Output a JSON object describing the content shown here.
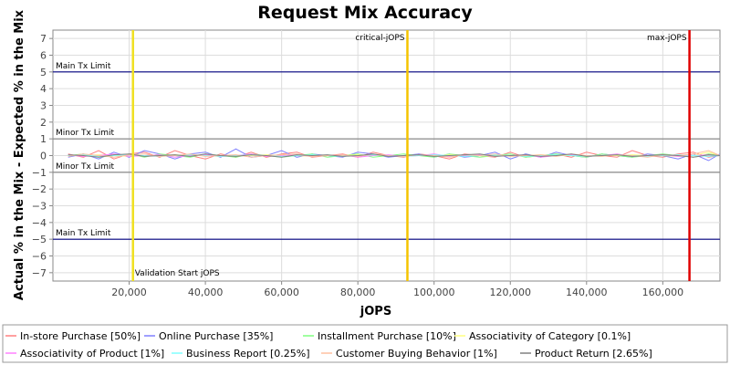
{
  "chart_data": {
    "type": "line",
    "title": "Request Mix Accuracy",
    "xlabel": "jOPS",
    "ylabel": "Actual % in the Mix - Expected % in the Mix",
    "xlim": [
      0,
      175000
    ],
    "ylim": [
      -7.5,
      7.5
    ],
    "xticks": [
      20000,
      40000,
      60000,
      80000,
      100000,
      120000,
      140000,
      160000
    ],
    "xtick_labels": [
      "20,000",
      "40,000",
      "60,000",
      "80,000",
      "100,000",
      "120,000",
      "140,000",
      "160,000"
    ],
    "yticks": [
      -7,
      -6,
      -5,
      -4,
      -3,
      -2,
      -1,
      0,
      1,
      2,
      3,
      4,
      5,
      6,
      7
    ],
    "ytick_labels": [
      "−7",
      "−6",
      "−5",
      "−4",
      "−3",
      "−2",
      "−1",
      "0",
      "1",
      "2",
      "3",
      "4",
      "5",
      "6",
      "7"
    ],
    "grid": true,
    "legend_position": "bottom",
    "limits": [
      {
        "label": "Main Tx Limit",
        "y": 5,
        "color": "#000080"
      },
      {
        "label": "Minor Tx Limit",
        "y": 1,
        "color": "#808080"
      },
      {
        "label": "Minor Tx Limit",
        "y": -1,
        "color": "#808080"
      },
      {
        "label": "Main Tx Limit",
        "y": -5,
        "color": "#000080"
      }
    ],
    "markers": [
      {
        "label": "Validation Start jOPS",
        "x": 21000,
        "color": "#f0e020"
      },
      {
        "label": "critical-jOPS",
        "x": 93000,
        "color": "#f5c400"
      },
      {
        "label": "max-jOPS",
        "x": 167000,
        "color": "#e00000"
      }
    ],
    "x": [
      4000,
      8000,
      12000,
      16000,
      20000,
      24000,
      28000,
      32000,
      36000,
      40000,
      44000,
      48000,
      52000,
      56000,
      60000,
      64000,
      68000,
      72000,
      76000,
      80000,
      84000,
      88000,
      92000,
      96000,
      100000,
      104000,
      108000,
      112000,
      116000,
      120000,
      124000,
      128000,
      132000,
      136000,
      140000,
      144000,
      148000,
      152000,
      156000,
      160000,
      164000,
      168000,
      172000,
      175000
    ],
    "series": [
      {
        "name": "In-store Purchase [50%]",
        "color": "#ff8080",
        "values": [
          0.1,
          -0.1,
          0.3,
          -0.2,
          0.1,
          0.2,
          -0.1,
          0.3,
          0,
          -0.2,
          0.1,
          -0.1,
          0.2,
          -0.1,
          0.1,
          0.2,
          -0.1,
          0,
          0.1,
          -0.1,
          0.2,
          0,
          -0.1,
          0.1,
          0,
          -0.2,
          0.1,
          0,
          -0.1,
          0.2,
          -0.1,
          0,
          0.1,
          -0.1,
          0.2,
          0,
          -0.1,
          0.3,
          0,
          -0.1,
          0.1,
          0.2,
          -0.1,
          0
        ]
      },
      {
        "name": "Online Purchase [35%]",
        "color": "#8080ff",
        "values": [
          -0.1,
          0.1,
          -0.2,
          0.2,
          -0.1,
          0.3,
          0.1,
          -0.2,
          0.1,
          0.2,
          -0.1,
          0.4,
          -0.1,
          0,
          0.3,
          -0.1,
          0.1,
          0,
          -0.1,
          0.2,
          0.1,
          -0.1,
          0,
          0.1,
          -0.1,
          0.1,
          -0.1,
          0,
          0.2,
          -0.2,
          0.1,
          -0.1,
          0.2,
          0,
          -0.1,
          0.1,
          0,
          -0.1,
          0.1,
          0,
          -0.2,
          0.1,
          -0.3,
          0.1
        ]
      },
      {
        "name": "Installment Purchase [10%]",
        "color": "#80ff80",
        "values": [
          0,
          0.1,
          -0.1,
          0,
          0.1,
          -0.1,
          0.1,
          0,
          -0.1,
          0.1,
          0,
          -0.1,
          0.1,
          0,
          -0.1,
          0,
          0.1,
          -0.1,
          0,
          0.1,
          -0.1,
          0,
          0.1,
          0,
          -0.1,
          0.1,
          0,
          -0.1,
          0,
          0.1,
          -0.1,
          0,
          0.1,
          0,
          -0.1,
          0.1,
          0,
          -0.1,
          0,
          0.1,
          0,
          -0.1,
          0.1,
          0
        ]
      },
      {
        "name": "Associativity of Category [0.1%]",
        "color": "#ffff80",
        "values": [
          0,
          0,
          0.05,
          0,
          -0.05,
          0,
          0,
          0.05,
          0,
          0,
          -0.05,
          0,
          0,
          0.05,
          0,
          0,
          -0.05,
          0,
          0,
          0.05,
          0,
          0,
          -0.05,
          0,
          0,
          0.05,
          0,
          0,
          -0.05,
          0,
          0,
          0.05,
          0,
          0,
          -0.05,
          0,
          0,
          0.05,
          0,
          0,
          -0.05,
          0,
          0.2,
          0
        ]
      },
      {
        "name": "Associativity of Product [1%]",
        "color": "#ff80ff",
        "values": [
          0.05,
          -0.05,
          0,
          0.1,
          -0.05,
          0,
          0.05,
          -0.1,
          0,
          0.05,
          -0.05,
          0,
          0.1,
          -0.05,
          0,
          0.05,
          -0.05,
          0,
          0.05,
          -0.1,
          0,
          0.05,
          -0.05,
          0,
          0.1,
          -0.05,
          0,
          0.05,
          -0.05,
          0,
          0.05,
          -0.1,
          0,
          0.05,
          -0.05,
          0,
          0.1,
          -0.05,
          0,
          0.05,
          -0.05,
          0,
          0.05,
          0
        ]
      },
      {
        "name": "Business Report [0.25%]",
        "color": "#80ffff",
        "values": [
          0,
          0.05,
          -0.05,
          0,
          0.05,
          0,
          -0.05,
          0,
          0.05,
          0,
          -0.05,
          0,
          0.05,
          0,
          -0.05,
          0,
          0.05,
          0,
          -0.05,
          0,
          0.05,
          0,
          -0.05,
          0,
          0.05,
          0,
          -0.05,
          0,
          0.05,
          0,
          -0.05,
          0,
          0.05,
          0,
          -0.05,
          0,
          0.05,
          0,
          -0.05,
          0,
          0.05,
          0,
          -0.05,
          0
        ]
      },
      {
        "name": "Customer Buying Behavior [1%]",
        "color": "#ffc0a0",
        "values": [
          -0.05,
          0.1,
          0,
          -0.1,
          0.05,
          0.1,
          -0.05,
          0,
          0.1,
          -0.05,
          0,
          0.05,
          -0.1,
          0,
          0.05,
          0.1,
          -0.05,
          0,
          0.05,
          -0.05,
          0.1,
          0,
          -0.05,
          0.05,
          0,
          -0.1,
          0.05,
          0,
          0.1,
          -0.05,
          0,
          0.05,
          -0.05,
          0.1,
          0,
          -0.05,
          0.05,
          0,
          -0.1,
          0.05,
          0,
          0.1,
          0.3,
          0
        ]
      },
      {
        "name": "Product Return [2.65%]",
        "color": "#808080",
        "values": [
          0.05,
          0,
          -0.1,
          0.05,
          0.1,
          -0.05,
          0,
          0.05,
          -0.05,
          0.1,
          0,
          -0.05,
          0.05,
          0,
          -0.1,
          0.05,
          0,
          0.05,
          -0.05,
          0,
          0.1,
          -0.05,
          0,
          0.05,
          -0.05,
          0,
          0.05,
          0.1,
          -0.05,
          0,
          0.05,
          -0.05,
          0,
          0.1,
          -0.05,
          0,
          0.05,
          -0.05,
          0,
          0.05,
          0,
          -0.1,
          0.05,
          0
        ]
      }
    ]
  }
}
